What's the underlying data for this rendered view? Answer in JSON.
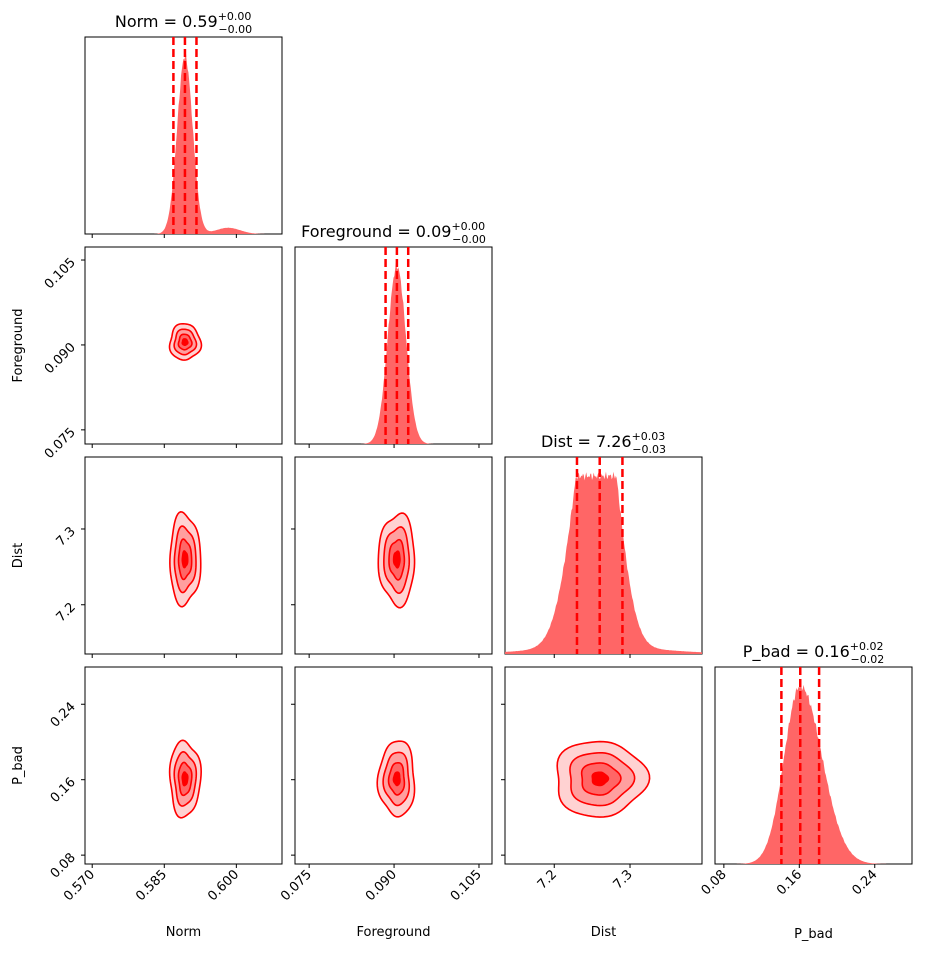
{
  "chart_data": {
    "type": "corner",
    "color": "#ff0000",
    "fill_color": "#ff6666",
    "contour_fill_colors": [
      "#ffd2d2",
      "#ff9f9f",
      "#ff6666",
      "#ff0000"
    ],
    "parameters": [
      {
        "name": "Norm",
        "axis_label": "Norm",
        "range": [
          0.5685,
          0.6095
        ],
        "ticks": [
          "0.570",
          "0.585",
          "0.600"
        ],
        "tick_values": [
          0.57,
          0.585,
          0.6
        ],
        "median": 0.5893,
        "lo": 0.5869,
        "hi": 0.5917,
        "sigma": 0.0016
      },
      {
        "name": "Foreground",
        "axis_label": "Foreground",
        "range": [
          0.0725,
          0.1073
        ],
        "ticks": [
          "0.075",
          "0.090",
          "0.105"
        ],
        "tick_values": [
          0.075,
          0.09,
          0.105
        ],
        "median": 0.0905,
        "lo": 0.0885,
        "hi": 0.0925,
        "sigma": 0.0016
      },
      {
        "name": "Dist",
        "axis_label": "Dist",
        "range": [
          7.135,
          7.395
        ],
        "ticks": [
          "7.2",
          "7.3"
        ],
        "tick_values": [
          7.2,
          7.3
        ],
        "median": 7.26,
        "lo": 7.23,
        "hi": 7.29,
        "sigma": 0.03
      },
      {
        "name": "P_bad",
        "axis_label": "P_bad",
        "range": [
          0.0706,
          0.2795
        ],
        "ticks": [
          "0.08",
          "0.16",
          "0.24"
        ],
        "tick_values": [
          0.08,
          0.16,
          0.24
        ],
        "median": 0.161,
        "lo": 0.141,
        "hi": 0.181,
        "sigma": 0.02
      }
    ],
    "titles": [
      {
        "base": "Norm = 0.59",
        "sup": "+0.00",
        "sub": "−0.00"
      },
      {
        "base": "Foreground = 0.09",
        "sup": "+0.00",
        "sub": "−0.00"
      },
      {
        "base": "Dist = 7.26",
        "sup": "+0.03",
        "sub": "−0.03"
      },
      {
        "base": "P_bad = 0.16",
        "sup": "+0.02",
        "sub": "−0.02"
      }
    ],
    "contour_levels_sigma": [
      2.0,
      1.4,
      0.85,
      0.35
    ],
    "grid": false,
    "legend": "none"
  }
}
